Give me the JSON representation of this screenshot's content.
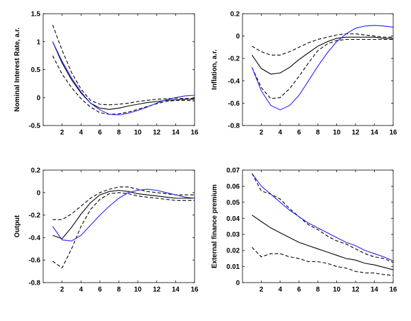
{
  "chart_data": [
    {
      "type": "line",
      "ylabel": "Nominal Interest Rate, a.r.",
      "xlim": [
        0,
        16
      ],
      "ylim": [
        -0.5,
        1.5
      ],
      "xticks": [
        "2",
        "4",
        "6",
        "8",
        "10",
        "12",
        "14",
        "16"
      ],
      "yticks": [
        "-0.5",
        "0",
        "0.5",
        "1",
        "1.5"
      ],
      "grid": false,
      "x": [
        1,
        2,
        3,
        4,
        5,
        6,
        7,
        8,
        9,
        10,
        11,
        12,
        13,
        14,
        15,
        16
      ],
      "series": [
        {
          "style": "dashed",
          "color": "#000000",
          "values": [
            1.3,
            0.85,
            0.45,
            0.15,
            -0.05,
            -0.12,
            -0.13,
            -0.12,
            -0.1,
            -0.07,
            -0.05,
            -0.03,
            -0.02,
            -0.01,
            -0.02,
            -0.01
          ]
        },
        {
          "style": "dashed",
          "color": "#000000",
          "values": [
            0.75,
            0.42,
            0.18,
            -0.02,
            -0.17,
            -0.27,
            -0.3,
            -0.29,
            -0.26,
            -0.21,
            -0.16,
            -0.11,
            -0.07,
            -0.05,
            -0.05,
            -0.06
          ]
        },
        {
          "style": "solid",
          "color": "#000000",
          "values": [
            1.0,
            0.62,
            0.32,
            0.08,
            -0.1,
            -0.19,
            -0.21,
            -0.19,
            -0.15,
            -0.12,
            -0.09,
            -0.07,
            -0.05,
            -0.04,
            -0.03,
            -0.03
          ]
        },
        {
          "style": "solid",
          "color": "#2020ff",
          "values": [
            1.0,
            0.65,
            0.35,
            0.1,
            -0.1,
            -0.22,
            -0.3,
            -0.31,
            -0.28,
            -0.23,
            -0.17,
            -0.1,
            -0.04,
            0.0,
            0.03,
            0.04
          ]
        }
      ]
    },
    {
      "type": "line",
      "ylabel": "Inflation, a.r.",
      "xlim": [
        0,
        16
      ],
      "ylim": [
        -0.8,
        0.2
      ],
      "xticks": [
        "2",
        "4",
        "6",
        "8",
        "10",
        "12",
        "14",
        "16"
      ],
      "yticks": [
        "-0.8",
        "-0.6",
        "-0.4",
        "-0.2",
        "0",
        "0.2"
      ],
      "grid": false,
      "x": [
        1,
        2,
        3,
        4,
        5,
        6,
        7,
        8,
        9,
        10,
        11,
        12,
        13,
        14,
        15,
        16
      ],
      "series": [
        {
          "style": "dashed",
          "color": "#000000",
          "values": [
            -0.09,
            -0.14,
            -0.17,
            -0.17,
            -0.14,
            -0.1,
            -0.06,
            -0.03,
            -0.01,
            0.01,
            0.02,
            0.02,
            0.01,
            0.0,
            -0.01,
            -0.01
          ]
        },
        {
          "style": "dashed",
          "color": "#000000",
          "values": [
            -0.28,
            -0.46,
            -0.56,
            -0.55,
            -0.47,
            -0.36,
            -0.24,
            -0.13,
            -0.07,
            -0.04,
            -0.03,
            -0.03,
            -0.03,
            -0.03,
            -0.03,
            -0.03
          ]
        },
        {
          "style": "solid",
          "color": "#000000",
          "values": [
            -0.17,
            -0.29,
            -0.34,
            -0.33,
            -0.28,
            -0.21,
            -0.15,
            -0.09,
            -0.05,
            -0.02,
            -0.01,
            -0.01,
            -0.01,
            -0.01,
            -0.02,
            -0.02
          ]
        },
        {
          "style": "solid",
          "color": "#2020ff",
          "values": [
            -0.28,
            -0.49,
            -0.62,
            -0.66,
            -0.62,
            -0.53,
            -0.4,
            -0.27,
            -0.15,
            -0.05,
            0.02,
            0.07,
            0.09,
            0.095,
            0.09,
            0.08
          ]
        }
      ]
    },
    {
      "type": "line",
      "ylabel": "Output",
      "xlim": [
        0,
        16
      ],
      "ylim": [
        -0.8,
        0.2
      ],
      "xticks": [
        "2",
        "4",
        "6",
        "8",
        "10",
        "12",
        "14",
        "16"
      ],
      "yticks": [
        "-0.8",
        "-0.6",
        "-0.4",
        "-0.2",
        "0",
        "0.2"
      ],
      "grid": false,
      "x": [
        1,
        2,
        3,
        4,
        5,
        6,
        7,
        8,
        9,
        10,
        11,
        12,
        13,
        14,
        15,
        16
      ],
      "series": [
        {
          "style": "dashed",
          "color": "#000000",
          "values": [
            -0.24,
            -0.24,
            -0.19,
            -0.12,
            -0.05,
            0.0,
            0.03,
            0.05,
            0.05,
            0.03,
            0.01,
            0.0,
            -0.01,
            -0.02,
            -0.02,
            -0.02
          ]
        },
        {
          "style": "dashed",
          "color": "#000000",
          "values": [
            -0.61,
            -0.67,
            -0.5,
            -0.3,
            -0.15,
            -0.06,
            -0.01,
            0.0,
            -0.01,
            -0.03,
            -0.04,
            -0.05,
            -0.06,
            -0.07,
            -0.07,
            -0.07
          ]
        },
        {
          "style": "solid",
          "color": "#000000",
          "values": [
            -0.38,
            -0.41,
            -0.31,
            -0.19,
            -0.09,
            -0.02,
            0.01,
            0.02,
            0.01,
            -0.01,
            -0.02,
            -0.03,
            -0.04,
            -0.05,
            -0.05,
            -0.05
          ]
        },
        {
          "style": "solid",
          "color": "#2020ff",
          "values": [
            -0.3,
            -0.42,
            -0.43,
            -0.38,
            -0.29,
            -0.2,
            -0.12,
            -0.05,
            0.0,
            0.02,
            0.03,
            0.02,
            0.0,
            -0.02,
            -0.04,
            -0.05
          ]
        }
      ]
    },
    {
      "type": "line",
      "ylabel": "External finance premium",
      "xlim": [
        0,
        16
      ],
      "ylim": [
        0,
        0.07
      ],
      "xticks": [
        "2",
        "4",
        "6",
        "8",
        "10",
        "12",
        "14",
        "16"
      ],
      "yticks": [
        "0",
        "0.01",
        "0.02",
        "0.03",
        "0.04",
        "0.05",
        "0.06",
        "0.07"
      ],
      "grid": false,
      "x": [
        1,
        2,
        3,
        4,
        5,
        6,
        7,
        8,
        9,
        10,
        11,
        12,
        13,
        14,
        15,
        16
      ],
      "series": [
        {
          "style": "dashed",
          "color": "#000000",
          "values": [
            0.068,
            0.057,
            0.055,
            0.052,
            0.046,
            0.041,
            0.036,
            0.033,
            0.029,
            0.026,
            0.024,
            0.021,
            0.018,
            0.016,
            0.015,
            0.0125
          ]
        },
        {
          "style": "dashed",
          "color": "#000000",
          "values": [
            0.022,
            0.016,
            0.018,
            0.018,
            0.016,
            0.015,
            0.013,
            0.013,
            0.012,
            0.01,
            0.009,
            0.007,
            0.006,
            0.006,
            0.005,
            0.0045
          ]
        },
        {
          "style": "solid",
          "color": "#000000",
          "values": [
            0.042,
            0.038,
            0.034,
            0.031,
            0.028,
            0.025,
            0.023,
            0.021,
            0.019,
            0.017,
            0.015,
            0.014,
            0.012,
            0.011,
            0.0095,
            0.008
          ]
        },
        {
          "style": "solid",
          "color": "#2020ff",
          "values": [
            0.068,
            0.06,
            0.055,
            0.05,
            0.045,
            0.041,
            0.037,
            0.034,
            0.031,
            0.028,
            0.025,
            0.023,
            0.02,
            0.018,
            0.016,
            0.0135
          ]
        }
      ]
    }
  ]
}
